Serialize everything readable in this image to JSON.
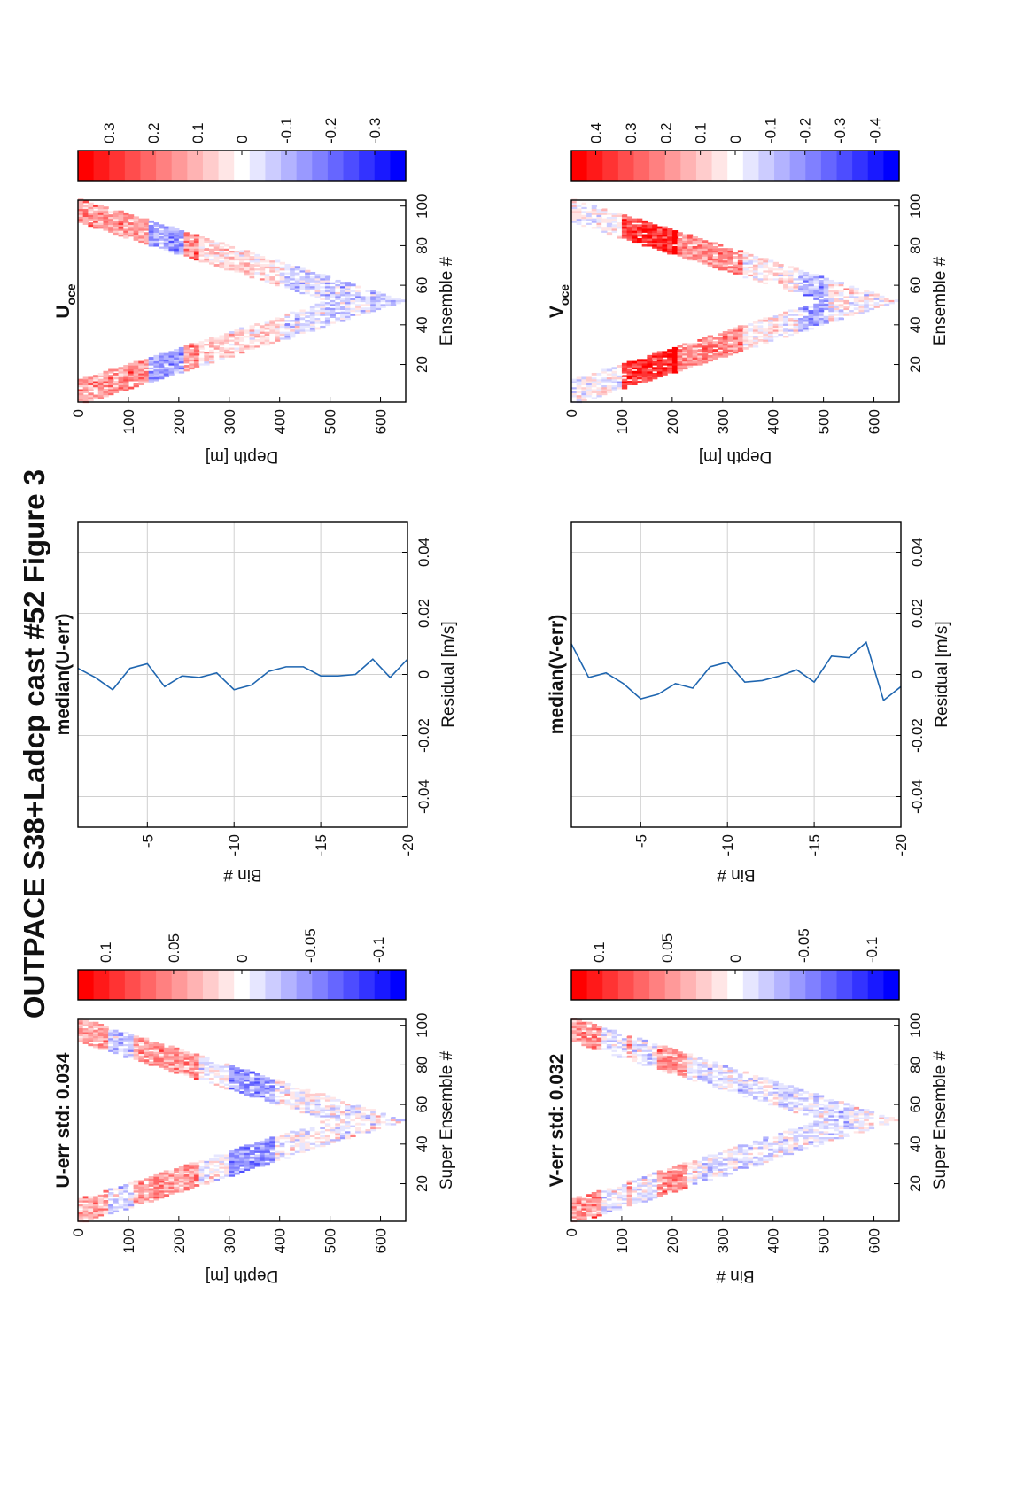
{
  "title": "OUTPACE S38+Ladcp cast #52  Figure 3",
  "chart_data": [
    {
      "type": "heatmap",
      "title": "U-err std: 0.034",
      "xlabel": "Super Ensemble #",
      "ylabel": "Depth [m]",
      "xlim": [
        1,
        103
      ],
      "ylim": [
        0,
        650
      ],
      "x_ticks": [
        "20",
        "40",
        "60",
        "80",
        "100"
      ],
      "y_ticks": [
        "0",
        "100",
        "200",
        "300",
        "400",
        "500",
        "600"
      ],
      "colorbar": {
        "min": -0.12,
        "max": 0.12,
        "ticks": [
          "0.1",
          "0.05",
          "0",
          "-0.05",
          "-0.1"
        ]
      },
      "bands": [
        {
          "depth": [
            0,
            110
          ],
          "value": 0.04,
          "ens": 10
        },
        {
          "depth": [
            60,
            110
          ],
          "value": -0.06,
          "ens": 8
        },
        {
          "depth": [
            110,
            230
          ],
          "value": 0.05,
          "ens": 18
        },
        {
          "depth": [
            300,
            380
          ],
          "value": -0.05,
          "ens": 34
        }
      ]
    },
    {
      "type": "line",
      "title": "median(U-err)",
      "xlabel": "Residual [m/s]",
      "ylabel": "Bin #",
      "xlim": [
        -0.05,
        0.05
      ],
      "ylim": [
        -1,
        -20
      ],
      "x_ticks": [
        "-0.04",
        "-0.02",
        "0",
        "0.02",
        "0.04"
      ],
      "y_ticks": [
        "-5",
        "-10",
        "-15",
        "-20"
      ],
      "bins": [
        -1,
        -2,
        -3,
        -4,
        -5,
        -6,
        -7,
        -8,
        -9,
        -10,
        -11,
        -12,
        -13,
        -14,
        -15,
        -16,
        -17,
        -18,
        -19,
        -20
      ],
      "values": [
        0.002,
        -0.001,
        -0.005,
        0.002,
        0.0035,
        -0.004,
        -0.0005,
        -0.001,
        0.0005,
        -0.005,
        -0.0035,
        0.001,
        0.0025,
        0.0025,
        -0.0005,
        -0.0005,
        0.0,
        0.005,
        -0.001,
        0.005
      ]
    },
    {
      "type": "heatmap",
      "title": "U",
      "title_subscript": "oce",
      "xlabel": "Ensemble #",
      "ylabel": "Depth [m]",
      "xlim": [
        1,
        103
      ],
      "ylim": [
        0,
        650
      ],
      "x_ticks": [
        "20",
        "40",
        "60",
        "80",
        "100"
      ],
      "y_ticks": [
        "0",
        "100",
        "200",
        "300",
        "400",
        "500",
        "600"
      ],
      "colorbar": {
        "min": -0.37,
        "max": 0.37,
        "ticks": [
          "0.3",
          "0.2",
          "0.1",
          "0",
          "-0.1",
          "-0.2",
          "-0.3"
        ]
      },
      "bands": [
        {
          "depth": [
            0,
            230
          ],
          "value": 0.15,
          "ens": 14
        },
        {
          "depth": [
            140,
            200
          ],
          "value": -0.28,
          "ens": 12
        },
        {
          "depth": [
            230,
            400
          ],
          "value": 0.05,
          "ens": 30
        },
        {
          "depth": [
            400,
            650
          ],
          "value": -0.05,
          "ens": 45
        }
      ]
    },
    {
      "type": "heatmap",
      "title": "V-err std: 0.032",
      "xlabel": "Super Ensemble #",
      "ylabel": "Bin #",
      "xlim": [
        1,
        103
      ],
      "ylim": [
        0,
        650
      ],
      "x_ticks": [
        "20",
        "40",
        "60",
        "80",
        "100"
      ],
      "y_ticks": [
        "0",
        "100",
        "200",
        "300",
        "400",
        "500",
        "600"
      ],
      "colorbar": {
        "min": -0.12,
        "max": 0.12,
        "ticks": [
          "0.1",
          "0.05",
          "0",
          "-0.05",
          "-0.1"
        ]
      },
      "bands": [
        {
          "depth": [
            0,
            110
          ],
          "value": 0.05,
          "ens": 10
        },
        {
          "depth": [
            60,
            160
          ],
          "value": -0.06,
          "ens": 12
        },
        {
          "depth": [
            110,
            220
          ],
          "value": 0.05,
          "ens": 16
        },
        {
          "depth": [
            250,
            550
          ],
          "value": -0.01,
          "ens": 35
        }
      ]
    },
    {
      "type": "line",
      "title": "median(V-err)",
      "xlabel": "Residual [m/s]",
      "ylabel": "Bin #",
      "xlim": [
        -0.05,
        0.05
      ],
      "ylim": [
        -1,
        -20
      ],
      "x_ticks": [
        "-0.04",
        "-0.02",
        "0",
        "0.02",
        "0.04"
      ],
      "y_ticks": [
        "-5",
        "-10",
        "-15",
        "-20"
      ],
      "bins": [
        -1,
        -2,
        -3,
        -4,
        -5,
        -6,
        -7,
        -8,
        -9,
        -10,
        -11,
        -12,
        -13,
        -14,
        -15,
        -16,
        -17,
        -18,
        -19,
        -20
      ],
      "values": [
        0.01,
        -0.001,
        0.0005,
        -0.003,
        -0.008,
        -0.0065,
        -0.003,
        -0.0045,
        0.0025,
        0.004,
        -0.0025,
        -0.002,
        -0.0005,
        0.0015,
        -0.0025,
        0.006,
        0.0055,
        0.0105,
        -0.0085,
        -0.004
      ]
    },
    {
      "type": "heatmap",
      "title": "V",
      "title_subscript": "oce",
      "xlabel": "Ensemble #",
      "ylabel": "Depth [m]",
      "xlim": [
        1,
        103
      ],
      "ylim": [
        0,
        650
      ],
      "x_ticks": [
        "20",
        "40",
        "60",
        "80",
        "100"
      ],
      "y_ticks": [
        "0",
        "100",
        "200",
        "300",
        "400",
        "500",
        "600"
      ],
      "colorbar": {
        "min": -0.47,
        "max": 0.47,
        "ticks": [
          "0.4",
          "0.3",
          "0.2",
          "0.1",
          "0",
          "-0.1",
          "-0.2",
          "-0.3",
          "-0.4"
        ]
      },
      "bands": [
        {
          "depth": [
            100,
            200
          ],
          "value": 0.38,
          "ens": 12
        },
        {
          "depth": [
            200,
            330
          ],
          "value": 0.22,
          "ens": 22
        },
        {
          "depth": [
            330,
            450
          ],
          "value": 0.03,
          "ens": 36
        },
        {
          "depth": [
            450,
            500
          ],
          "value": -0.15,
          "ens": 42
        },
        {
          "depth": [
            500,
            650
          ],
          "value": 0.02,
          "ens": 48
        }
      ]
    }
  ]
}
